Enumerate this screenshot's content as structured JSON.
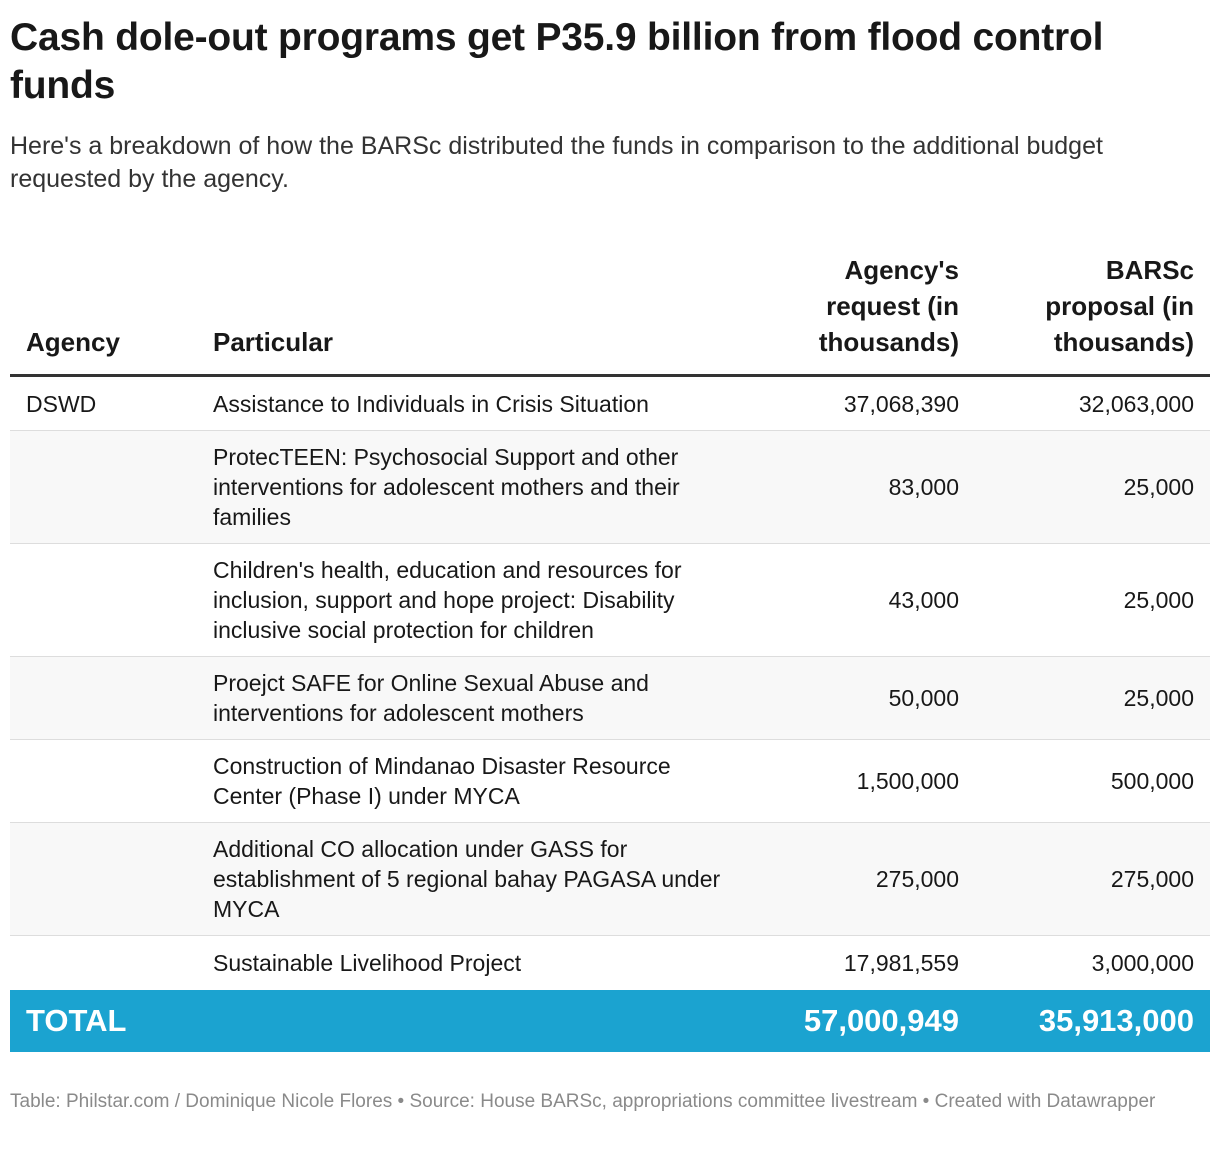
{
  "title": "Cash dole-out programs get P35.9 billion from flood control funds",
  "subtitle": "Here's a breakdown of how the BARSc distributed the funds in comparison to the additional budget requested by the agency.",
  "chart_data": {
    "type": "table",
    "columns": [
      "Agency",
      "Particular",
      "Agency's request (in thousands)",
      "BARSc proposal (in thousands)"
    ],
    "rows": [
      {
        "agency": "DSWD",
        "particular": "Assistance to Individuals in Crisis Situation",
        "request": "37,068,390",
        "proposal": "32,063,000"
      },
      {
        "agency": "",
        "particular": "ProtecTEEN: Psychosocial Support and other interventions for adolescent mothers and their families",
        "request": "83,000",
        "proposal": "25,000"
      },
      {
        "agency": "",
        "particular": "Children's health, education and resources for inclusion, support and hope project: Disability inclusive social protection for children",
        "request": "43,000",
        "proposal": "25,000"
      },
      {
        "agency": "",
        "particular": "Proejct SAFE for Online Sexual Abuse and interventions for adolescent mothers",
        "request": "50,000",
        "proposal": "25,000"
      },
      {
        "agency": "",
        "particular": "Construction of Mindanao Disaster Resource Center (Phase I) under MYCA",
        "request": "1,500,000",
        "proposal": "500,000"
      },
      {
        "agency": "",
        "particular": "Additional CO allocation under GASS for establishment of 5 regional bahay PAGASA under MYCA",
        "request": "275,000",
        "proposal": "275,000"
      },
      {
        "agency": "",
        "particular": "Sustainable Livelihood Project",
        "request": "17,981,559",
        "proposal": "3,000,000"
      }
    ],
    "total": {
      "label": "TOTAL",
      "request": "57,000,949",
      "proposal": "35,913,000"
    },
    "total_color": "#1ba3d0"
  },
  "notes": "Table: Philstar.com / Dominique Nicole Flores • Source: House BARSc, appropriations committee livestream • Created with Datawrapper"
}
